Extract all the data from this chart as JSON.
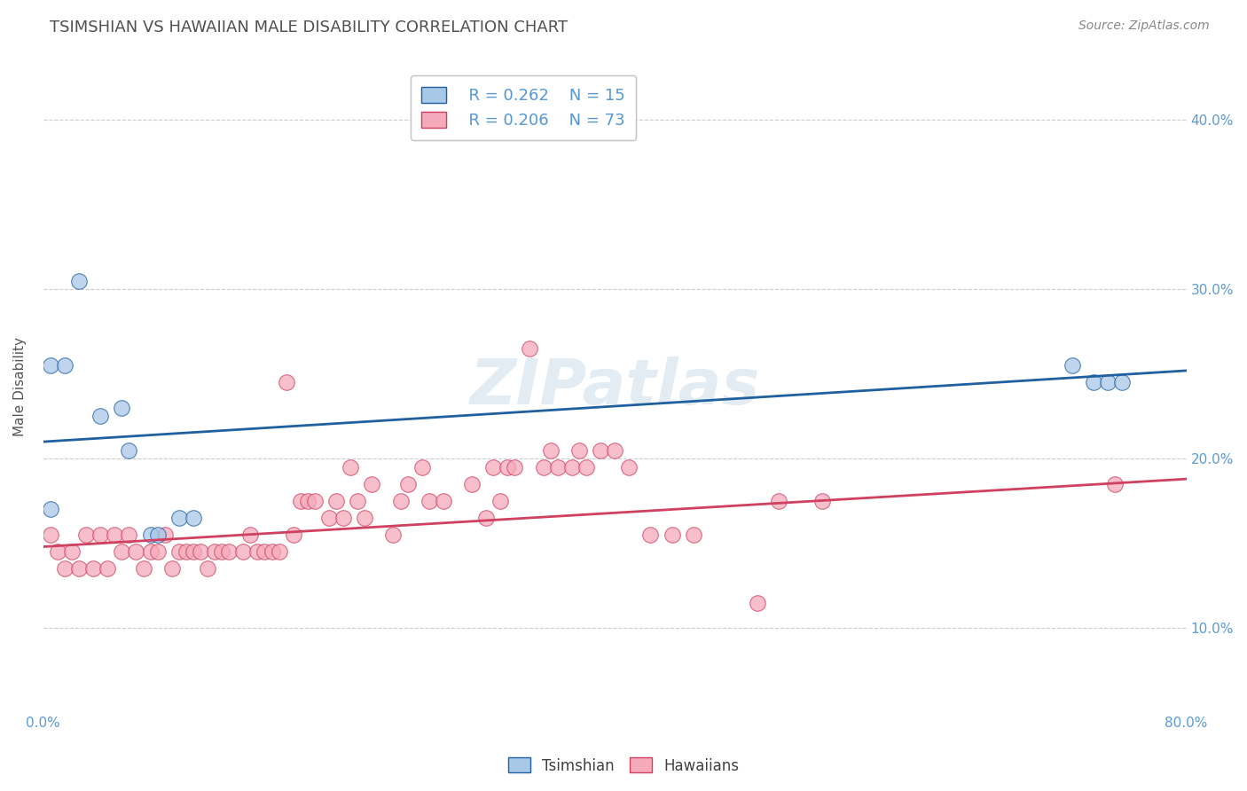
{
  "title": "TSIMSHIAN VS HAWAIIAN MALE DISABILITY CORRELATION CHART",
  "source": "Source: ZipAtlas.com",
  "ylabel": "Male Disability",
  "xlim": [
    0.0,
    0.8
  ],
  "ylim": [
    0.05,
    0.435
  ],
  "xticks": [
    0.0,
    0.1,
    0.2,
    0.3,
    0.4,
    0.5,
    0.6,
    0.7,
    0.8
  ],
  "xticklabels_show": [
    "0.0%",
    "80.0%"
  ],
  "xticklabels_show_pos": [
    0.0,
    0.8
  ],
  "yticks_right": [
    0.1,
    0.2,
    0.3,
    0.4
  ],
  "yticklabels_right": [
    "10.0%",
    "20.0%",
    "30.0%",
    "40.0%"
  ],
  "tsimshian_color": "#a8c8e8",
  "hawaiian_color": "#f5aabb",
  "trend_blue": "#2060a0",
  "trend_pink": "#d04060",
  "legend_R1": "R = 0.262",
  "legend_N1": "N = 15",
  "legend_R2": "R = 0.206",
  "legend_N2": "N = 73",
  "watermark": "ZIPatlas",
  "tsimshian_x": [
    0.005,
    0.015,
    0.025,
    0.04,
    0.055,
    0.005,
    0.06,
    0.075,
    0.08,
    0.095,
    0.105,
    0.72,
    0.735,
    0.745,
    0.755
  ],
  "tsimshian_y": [
    0.255,
    0.255,
    0.305,
    0.225,
    0.23,
    0.17,
    0.205,
    0.155,
    0.155,
    0.165,
    0.165,
    0.255,
    0.245,
    0.245,
    0.245
  ],
  "hawaiian_x": [
    0.005,
    0.01,
    0.015,
    0.02,
    0.025,
    0.03,
    0.035,
    0.04,
    0.045,
    0.05,
    0.055,
    0.06,
    0.065,
    0.07,
    0.075,
    0.08,
    0.085,
    0.09,
    0.095,
    0.1,
    0.105,
    0.11,
    0.115,
    0.12,
    0.125,
    0.13,
    0.14,
    0.145,
    0.15,
    0.155,
    0.16,
    0.165,
    0.17,
    0.175,
    0.18,
    0.185,
    0.19,
    0.2,
    0.205,
    0.21,
    0.215,
    0.22,
    0.225,
    0.23,
    0.245,
    0.25,
    0.255,
    0.265,
    0.27,
    0.28,
    0.3,
    0.31,
    0.315,
    0.32,
    0.325,
    0.33,
    0.34,
    0.35,
    0.355,
    0.36,
    0.37,
    0.375,
    0.38,
    0.39,
    0.4,
    0.41,
    0.425,
    0.44,
    0.455,
    0.5,
    0.515,
    0.545,
    0.75
  ],
  "hawaiian_y": [
    0.155,
    0.145,
    0.135,
    0.145,
    0.135,
    0.155,
    0.135,
    0.155,
    0.135,
    0.155,
    0.145,
    0.155,
    0.145,
    0.135,
    0.145,
    0.145,
    0.155,
    0.135,
    0.145,
    0.145,
    0.145,
    0.145,
    0.135,
    0.145,
    0.145,
    0.145,
    0.145,
    0.155,
    0.145,
    0.145,
    0.145,
    0.145,
    0.245,
    0.155,
    0.175,
    0.175,
    0.175,
    0.165,
    0.175,
    0.165,
    0.195,
    0.175,
    0.165,
    0.185,
    0.155,
    0.175,
    0.185,
    0.195,
    0.175,
    0.175,
    0.185,
    0.165,
    0.195,
    0.175,
    0.195,
    0.195,
    0.265,
    0.195,
    0.205,
    0.195,
    0.195,
    0.205,
    0.195,
    0.205,
    0.205,
    0.195,
    0.155,
    0.155,
    0.155,
    0.115,
    0.175,
    0.175,
    0.185
  ]
}
